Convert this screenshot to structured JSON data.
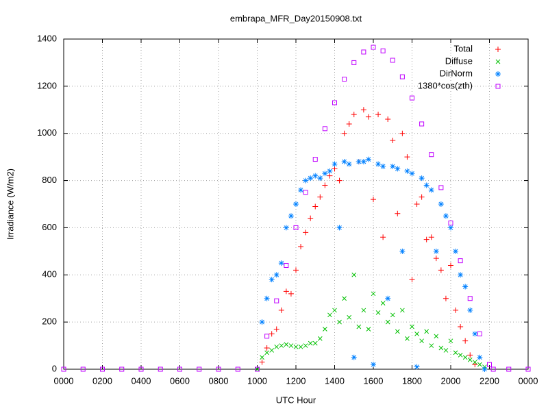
{
  "chart_data": {
    "type": "scatter",
    "title": "embrapa_MFR_Day20150908.txt",
    "xlabel": "UTC Hour",
    "ylabel": "Irradiance (W/m2)",
    "xlim": [
      0,
      24
    ],
    "ylim": [
      0,
      1400
    ],
    "xticks": [
      {
        "value": 0,
        "label": "0000"
      },
      {
        "value": 2,
        "label": "0200"
      },
      {
        "value": 4,
        "label": "0400"
      },
      {
        "value": 6,
        "label": "0600"
      },
      {
        "value": 8,
        "label": "0800"
      },
      {
        "value": 10,
        "label": "1000"
      },
      {
        "value": 12,
        "label": "1200"
      },
      {
        "value": 14,
        "label": "1400"
      },
      {
        "value": 16,
        "label": "1600"
      },
      {
        "value": 18,
        "label": "1800"
      },
      {
        "value": 20,
        "label": "2000"
      },
      {
        "value": 22,
        "label": "2200"
      },
      {
        "value": 24,
        "label": "0000"
      }
    ],
    "yticks": [
      0,
      200,
      400,
      600,
      800,
      1000,
      1200,
      1400
    ],
    "grid": true,
    "legend": "top-right",
    "series": [
      {
        "name": "Total",
        "color": "#ff0000",
        "marker": "plus",
        "x": [
          10.25,
          10.5,
          10.75,
          11,
          11.25,
          11.5,
          11.75,
          12,
          12.25,
          12.5,
          12.75,
          13,
          13.25,
          13.5,
          13.75,
          14,
          14.25,
          14.5,
          14.75,
          15,
          15.25,
          15.5,
          15.75,
          16,
          16.25,
          16.5,
          16.75,
          17,
          17.25,
          17.5,
          17.75,
          18,
          18.25,
          18.5,
          18.75,
          19,
          19.25,
          19.5,
          19.75,
          20,
          20.25,
          20.5,
          20.75,
          21,
          21.25
        ],
        "values": [
          30,
          90,
          150,
          170,
          250,
          330,
          320,
          420,
          520,
          580,
          640,
          690,
          730,
          780,
          820,
          850,
          800,
          1000,
          1040,
          1080,
          880,
          1100,
          1070,
          720,
          1080,
          560,
          1060,
          970,
          660,
          1000,
          900,
          380,
          700,
          730,
          550,
          560,
          470,
          420,
          300,
          440,
          250,
          180,
          120,
          60,
          20
        ]
      },
      {
        "name": "Diffuse",
        "color": "#00c000",
        "marker": "cross",
        "x": [
          10,
          10.25,
          10.5,
          10.75,
          11,
          11.25,
          11.5,
          11.75,
          12,
          12.25,
          12.5,
          12.75,
          13,
          13.25,
          13.5,
          13.75,
          14,
          14.25,
          14.5,
          14.75,
          15,
          15.25,
          15.5,
          15.75,
          16,
          16.25,
          16.5,
          16.75,
          17,
          17.25,
          17.5,
          17.75,
          18,
          18.25,
          18.5,
          18.75,
          19,
          19.25,
          19.5,
          19.75,
          20,
          20.25,
          20.5,
          20.75,
          21,
          21.25,
          21.5,
          21.75
        ],
        "values": [
          0,
          50,
          70,
          80,
          95,
          100,
          105,
          100,
          95,
          95,
          100,
          110,
          110,
          130,
          170,
          230,
          250,
          200,
          300,
          220,
          400,
          180,
          250,
          170,
          320,
          240,
          280,
          200,
          230,
          160,
          250,
          130,
          180,
          150,
          120,
          160,
          100,
          140,
          90,
          80,
          120,
          70,
          60,
          50,
          40,
          30,
          20,
          10
        ]
      },
      {
        "name": "DirNorm",
        "color": "#0080ff",
        "marker": "star",
        "x": [
          10.25,
          10.5,
          10.75,
          11,
          11.25,
          11.5,
          11.75,
          12,
          12.25,
          12.5,
          12.75,
          13,
          13.25,
          13.5,
          13.75,
          14,
          14.25,
          14.5,
          14.75,
          15,
          15.25,
          15.5,
          15.75,
          16,
          16.25,
          16.5,
          16.75,
          17,
          17.25,
          17.5,
          17.75,
          18,
          18.25,
          18.5,
          18.75,
          19,
          19.25,
          19.5,
          19.75,
          20,
          20.25,
          20.5,
          20.75,
          21,
          21.25,
          21.5,
          21.75
        ],
        "values": [
          200,
          300,
          380,
          400,
          450,
          600,
          650,
          700,
          760,
          800,
          810,
          820,
          810,
          830,
          840,
          870,
          600,
          880,
          870,
          50,
          880,
          880,
          890,
          20,
          870,
          860,
          300,
          860,
          850,
          500,
          840,
          830,
          10,
          810,
          780,
          760,
          500,
          700,
          650,
          600,
          500,
          400,
          350,
          250,
          150,
          50,
          0
        ]
      },
      {
        "name": "1380*cos(zth)",
        "color": "#c000ff",
        "marker": "square",
        "x": [
          0,
          1,
          2,
          3,
          4,
          5,
          6,
          7,
          8,
          9,
          10,
          10.5,
          11,
          11.5,
          12,
          12.5,
          13,
          13.5,
          14,
          14.5,
          15,
          15.5,
          16,
          16.5,
          17,
          17.5,
          18,
          18.5,
          19,
          19.5,
          20,
          20.5,
          21,
          21.5,
          22,
          22.2,
          23,
          24
        ],
        "values": [
          0,
          0,
          0,
          0,
          0,
          0,
          0,
          0,
          0,
          0,
          0,
          140,
          290,
          440,
          600,
          750,
          890,
          1020,
          1130,
          1230,
          1300,
          1345,
          1365,
          1350,
          1310,
          1240,
          1150,
          1040,
          910,
          770,
          620,
          460,
          300,
          150,
          20,
          0,
          0,
          0
        ]
      }
    ]
  }
}
